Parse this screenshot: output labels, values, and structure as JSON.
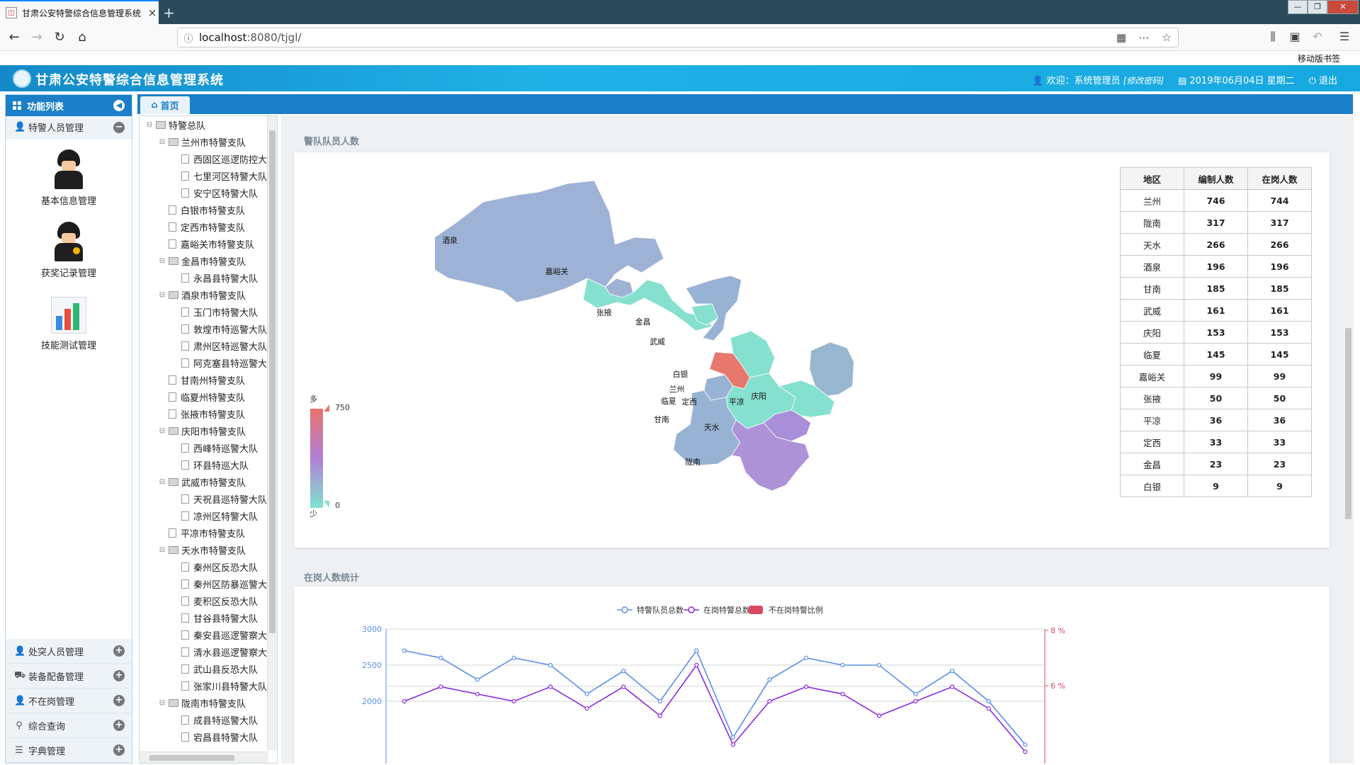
{
  "browser": {
    "tab_title": "甘肃公安特警综合信息管理系统",
    "tab_close": "×",
    "new_tab": "+",
    "url_host": "localhost",
    "url_rest": ":8080/tjgl/",
    "mobile_bookmarks": "移动版书签"
  },
  "app": {
    "title": "甘肃公安特警综合信息管理系统",
    "welcome": "欢迎：系统管理员",
    "change_password": "[修改密码]",
    "date": "2019年06月04日 星期二",
    "logout": "退出"
  },
  "sidebar": {
    "header": "功能列表",
    "active_group": "特警人员管理",
    "items": [
      {
        "label": "基本信息管理"
      },
      {
        "label": "获奖记录管理"
      },
      {
        "label": "技能测试管理"
      }
    ],
    "groups": [
      {
        "label": "处突人员管理",
        "icon": "user-icon"
      },
      {
        "label": "装备配备管理",
        "icon": "truck-icon"
      },
      {
        "label": "不在岗管理",
        "icon": "user-off-icon"
      },
      {
        "label": "综合查询",
        "icon": "search-icon"
      },
      {
        "label": "字典管理",
        "icon": "database-icon"
      }
    ]
  },
  "tabs": {
    "home": "首页"
  },
  "tree": [
    {
      "label": "特警总队",
      "level": 0,
      "type": "folder"
    },
    {
      "label": "兰州市特警支队",
      "level": 1,
      "type": "folder"
    },
    {
      "label": "西固区巡逻防控大队",
      "level": 2,
      "type": "doc"
    },
    {
      "label": "七里河区特警大队",
      "level": 2,
      "type": "doc"
    },
    {
      "label": "安宁区特警大队",
      "level": 2,
      "type": "doc"
    },
    {
      "label": "白银市特警支队",
      "level": 1,
      "type": "doc"
    },
    {
      "label": "定西市特警支队",
      "level": 1,
      "type": "doc"
    },
    {
      "label": "嘉峪关市特警支队",
      "level": 1,
      "type": "doc"
    },
    {
      "label": "金昌市特警支队",
      "level": 1,
      "type": "folder"
    },
    {
      "label": "永昌县特警大队",
      "level": 2,
      "type": "doc"
    },
    {
      "label": "酒泉市特警支队",
      "level": 1,
      "type": "folder"
    },
    {
      "label": "玉门市特警大队",
      "level": 2,
      "type": "doc"
    },
    {
      "label": "敦煌市特巡警大队",
      "level": 2,
      "type": "doc"
    },
    {
      "label": "肃州区特巡警大队",
      "level": 2,
      "type": "doc"
    },
    {
      "label": "阿克塞县特巡警大队",
      "level": 2,
      "type": "doc"
    },
    {
      "label": "甘南州特警支队",
      "level": 1,
      "type": "doc"
    },
    {
      "label": "临夏州特警支队",
      "level": 1,
      "type": "doc"
    },
    {
      "label": "张掖市特警支队",
      "level": 1,
      "type": "doc"
    },
    {
      "label": "庆阳市特警支队",
      "level": 1,
      "type": "folder"
    },
    {
      "label": "西峰特巡警大队",
      "level": 2,
      "type": "doc"
    },
    {
      "label": "环县特巡大队",
      "level": 2,
      "type": "doc"
    },
    {
      "label": "武威市特警支队",
      "level": 1,
      "type": "folder"
    },
    {
      "label": "天祝县巡特警大队",
      "level": 2,
      "type": "doc"
    },
    {
      "label": "凉州区特警大队",
      "level": 2,
      "type": "doc"
    },
    {
      "label": "平凉市特警支队",
      "level": 1,
      "type": "doc"
    },
    {
      "label": "天水市特警支队",
      "level": 1,
      "type": "folder"
    },
    {
      "label": "秦州区反恐大队",
      "level": 2,
      "type": "doc"
    },
    {
      "label": "秦州区防暴巡警大队",
      "level": 2,
      "type": "doc"
    },
    {
      "label": "麦积区反恐大队",
      "level": 2,
      "type": "doc"
    },
    {
      "label": "甘谷县特警大队",
      "level": 2,
      "type": "doc"
    },
    {
      "label": "秦安县巡逻警察大队",
      "level": 2,
      "type": "doc"
    },
    {
      "label": "清水县巡逻警察大队",
      "level": 2,
      "type": "doc"
    },
    {
      "label": "武山县反恐大队",
      "level": 2,
      "type": "doc"
    },
    {
      "label": "张家川县特警大队",
      "level": 2,
      "type": "doc"
    },
    {
      "label": "陇南市特警支队",
      "level": 1,
      "type": "folder"
    },
    {
      "label": "成县特巡警大队",
      "level": 2,
      "type": "doc"
    },
    {
      "label": "宕昌县特警大队",
      "level": 2,
      "type": "doc"
    }
  ],
  "section1": {
    "title": "警队队员人数",
    "map_legend": {
      "high_label": "多",
      "low_label": "少",
      "max": "750",
      "min": "0"
    },
    "map_regions": [
      {
        "name": "酒泉",
        "color": "#9eb2d6"
      },
      {
        "name": "嘉峪关",
        "color": "#9eb2d6"
      },
      {
        "name": "张掖",
        "color": "#86e0cf"
      },
      {
        "name": "金昌",
        "color": "#86e0cf"
      },
      {
        "name": "武威",
        "color": "#98b2d3"
      },
      {
        "name": "白银",
        "color": "#86e0cf"
      },
      {
        "name": "兰州",
        "color": "#e8776d"
      },
      {
        "name": "临夏",
        "color": "#98b2d3"
      },
      {
        "name": "定西",
        "color": "#86e0cf"
      },
      {
        "name": "甘南",
        "color": "#98b2d3"
      },
      {
        "name": "天水",
        "color": "#a98fd8"
      },
      {
        "name": "陇南",
        "color": "#ad92d8"
      },
      {
        "name": "平凉",
        "color": "#86e0cf"
      },
      {
        "name": "庆阳",
        "color": "#98b6cf"
      }
    ],
    "table": {
      "headers": [
        "地区",
        "编制人数",
        "在岗人数"
      ],
      "rows": [
        [
          "兰州",
          "746",
          "744"
        ],
        [
          "陇南",
          "317",
          "317"
        ],
        [
          "天水",
          "266",
          "266"
        ],
        [
          "酒泉",
          "196",
          "196"
        ],
        [
          "甘南",
          "185",
          "185"
        ],
        [
          "武威",
          "161",
          "161"
        ],
        [
          "庆阳",
          "153",
          "153"
        ],
        [
          "临夏",
          "145",
          "145"
        ],
        [
          "嘉峪关",
          "99",
          "99"
        ],
        [
          "张掖",
          "50",
          "50"
        ],
        [
          "平凉",
          "36",
          "36"
        ],
        [
          "定西",
          "33",
          "33"
        ],
        [
          "金昌",
          "23",
          "23"
        ],
        [
          "白银",
          "9",
          "9"
        ]
      ]
    }
  },
  "section2": {
    "title": "在岗人数统计"
  },
  "chart_data": {
    "type": "line",
    "legend": [
      "特警队员总数",
      "在岗特警总数",
      "不在岗特警比例"
    ],
    "y_left_ticks": [
      "3000",
      "2500",
      "2000"
    ],
    "y_right_ticks": [
      "8 %",
      "6 %"
    ],
    "ylim": [
      1700,
      3000
    ],
    "series": [
      {
        "name": "特警队员总数",
        "color": "#5b8fe8",
        "values": [
          2700,
          2600,
          2300,
          2600,
          2500,
          2100,
          2420,
          2000,
          2700,
          1500,
          2300,
          2600,
          2500,
          2500,
          2100,
          2420,
          2000,
          1400
        ]
      },
      {
        "name": "在岗特警总数",
        "color": "#8a2be2",
        "values": [
          2000,
          2200,
          2100,
          2000,
          2200,
          1900,
          2200,
          1800,
          2500,
          1400,
          2000,
          2200,
          2100,
          1800,
          2000,
          2200,
          1900,
          1300
        ]
      }
    ],
    "colors": {
      "right_axis": "#d14a61",
      "ratio": "#d9485f"
    }
  }
}
